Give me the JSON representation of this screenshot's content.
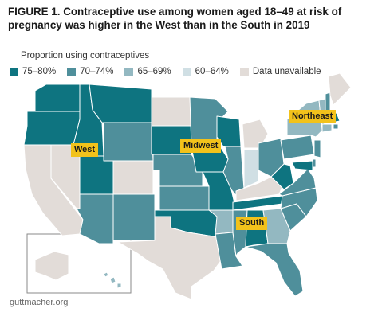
{
  "title": "FIGURE 1. Contraceptive use among women aged 18–49 at risk of pregnancy was higher in the West than in the South in 2019",
  "legend": {
    "heading": "Proportion using contraceptives",
    "items": [
      {
        "key": "c75",
        "label": "75–80%",
        "color": "#0e7480"
      },
      {
        "key": "c70",
        "label": "70–74%",
        "color": "#4f8f9b"
      },
      {
        "key": "c65",
        "label": "65–69%",
        "color": "#93b8c1"
      },
      {
        "key": "c60",
        "label": "60–64%",
        "color": "#d0dfe4"
      },
      {
        "key": "na",
        "label": "Data unavailable",
        "color": "#e2dcd8"
      }
    ]
  },
  "regions": {
    "west": "West",
    "midwest": "Midwest",
    "south": "South",
    "northeast": "Northeast"
  },
  "states": [
    {
      "abbr": "WA",
      "cat": "c75"
    },
    {
      "abbr": "OR",
      "cat": "c75"
    },
    {
      "abbr": "ID",
      "cat": "c75"
    },
    {
      "abbr": "MT",
      "cat": "c75"
    },
    {
      "abbr": "WY",
      "cat": "c70"
    },
    {
      "abbr": "CA",
      "cat": "na"
    },
    {
      "abbr": "NV",
      "cat": "na"
    },
    {
      "abbr": "UT",
      "cat": "c75"
    },
    {
      "abbr": "CO",
      "cat": "na"
    },
    {
      "abbr": "AZ",
      "cat": "c70"
    },
    {
      "abbr": "NM",
      "cat": "c70"
    },
    {
      "abbr": "ND",
      "cat": "na"
    },
    {
      "abbr": "SD",
      "cat": "c75"
    },
    {
      "abbr": "NE",
      "cat": "c70"
    },
    {
      "abbr": "KS",
      "cat": "c70"
    },
    {
      "abbr": "OK",
      "cat": "c75"
    },
    {
      "abbr": "TX",
      "cat": "na"
    },
    {
      "abbr": "MN",
      "cat": "c70"
    },
    {
      "abbr": "IA",
      "cat": "c75"
    },
    {
      "abbr": "MO",
      "cat": "c75"
    },
    {
      "abbr": "AR",
      "cat": "c65"
    },
    {
      "abbr": "LA",
      "cat": "c70"
    },
    {
      "abbr": "WI",
      "cat": "c75"
    },
    {
      "abbr": "IL",
      "cat": "c70"
    },
    {
      "abbr": "MI",
      "cat": "na"
    },
    {
      "abbr": "IN",
      "cat": "c60"
    },
    {
      "abbr": "OH",
      "cat": "c70"
    },
    {
      "abbr": "KY",
      "cat": "na"
    },
    {
      "abbr": "TN",
      "cat": "c75"
    },
    {
      "abbr": "MS",
      "cat": "c70"
    },
    {
      "abbr": "AL",
      "cat": "c75"
    },
    {
      "abbr": "GA",
      "cat": "c65"
    },
    {
      "abbr": "FL",
      "cat": "c70"
    },
    {
      "abbr": "SC",
      "cat": "c70"
    },
    {
      "abbr": "NC",
      "cat": "c70"
    },
    {
      "abbr": "VA",
      "cat": "c70"
    },
    {
      "abbr": "WV",
      "cat": "c75"
    },
    {
      "abbr": "PA",
      "cat": "c70"
    },
    {
      "abbr": "NY",
      "cat": "c65"
    },
    {
      "abbr": "VT",
      "cat": "c65"
    },
    {
      "abbr": "NH",
      "cat": "c70"
    },
    {
      "abbr": "ME",
      "cat": "na"
    },
    {
      "abbr": "MA",
      "cat": "c75"
    },
    {
      "abbr": "RI",
      "cat": "c70"
    },
    {
      "abbr": "CT",
      "cat": "c65"
    },
    {
      "abbr": "NJ",
      "cat": "c70"
    },
    {
      "abbr": "DE",
      "cat": "c70"
    },
    {
      "abbr": "MD",
      "cat": "c75"
    },
    {
      "abbr": "AK",
      "cat": "na"
    },
    {
      "abbr": "HI",
      "cat": "c65"
    }
  ],
  "source": "guttmacher.org"
}
